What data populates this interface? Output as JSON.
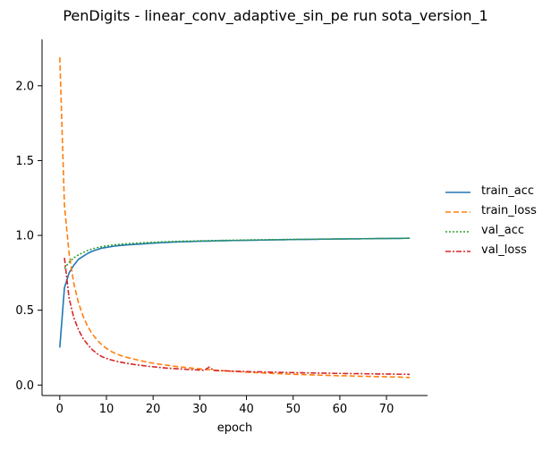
{
  "chart_data": {
    "type": "line",
    "title": "PenDigits - linear_conv_adaptive_sin_pe run sota_version_1",
    "xlabel": "epoch",
    "ylabel": "",
    "xlim": [
      -3.8,
      78.8
    ],
    "ylim": [
      -0.07,
      2.31
    ],
    "xticks": [
      0,
      10,
      20,
      30,
      40,
      50,
      60,
      70
    ],
    "yticks": [
      0.0,
      0.5,
      1.0,
      1.5,
      2.0
    ],
    "grid": false,
    "legend_position": "center-right",
    "x": [
      0,
      1,
      2,
      3,
      4,
      5,
      6,
      7,
      8,
      9,
      10,
      11,
      12,
      13,
      14,
      15,
      16,
      17,
      18,
      19,
      20,
      21,
      22,
      23,
      24,
      25,
      26,
      27,
      28,
      29,
      30,
      31,
      32,
      33,
      34,
      35,
      36,
      37,
      38,
      39,
      40,
      41,
      42,
      43,
      44,
      45,
      46,
      47,
      48,
      49,
      50,
      51,
      52,
      53,
      54,
      55,
      56,
      57,
      58,
      59,
      60,
      61,
      62,
      63,
      64,
      65,
      66,
      67,
      68,
      69,
      70,
      71,
      72,
      73,
      74,
      75
    ],
    "series": [
      {
        "name": "train_acc",
        "color": "#1f77b4",
        "dash": "solid",
        "values": [
          0.25,
          0.65,
          0.75,
          0.8,
          0.84,
          0.86,
          0.88,
          0.895,
          0.905,
          0.915,
          0.92,
          0.925,
          0.93,
          0.933,
          0.936,
          0.938,
          0.94,
          0.942,
          0.944,
          0.946,
          0.948,
          0.95,
          0.952,
          0.953,
          0.955,
          0.956,
          0.957,
          0.958,
          0.959,
          0.96,
          0.961,
          0.962,
          0.962,
          0.963,
          0.964,
          0.964,
          0.965,
          0.966,
          0.966,
          0.967,
          0.967,
          0.968,
          0.968,
          0.969,
          0.969,
          0.97,
          0.97,
          0.971,
          0.971,
          0.972,
          0.972,
          0.973,
          0.973,
          0.973,
          0.974,
          0.974,
          0.975,
          0.975,
          0.975,
          0.976,
          0.976,
          0.976,
          0.977,
          0.977,
          0.977,
          0.978,
          0.978,
          0.978,
          0.979,
          0.979,
          0.979,
          0.98,
          0.98,
          0.98,
          0.981,
          0.982
        ]
      },
      {
        "name": "train_loss",
        "color": "#ff7f0e",
        "dash": "dashed",
        "values": [
          2.19,
          1.2,
          0.88,
          0.68,
          0.55,
          0.46,
          0.39,
          0.34,
          0.3,
          0.27,
          0.245,
          0.225,
          0.21,
          0.198,
          0.188,
          0.18,
          0.172,
          0.165,
          0.158,
          0.152,
          0.146,
          0.141,
          0.136,
          0.132,
          0.128,
          0.124,
          0.12,
          0.117,
          0.114,
          0.111,
          0.108,
          0.105,
          0.103,
          0.1,
          0.098,
          0.096,
          0.094,
          0.092,
          0.09,
          0.088,
          0.086,
          0.085,
          0.083,
          0.082,
          0.08,
          0.079,
          0.077,
          0.076,
          0.075,
          0.073,
          0.072,
          0.071,
          0.07,
          0.069,
          0.068,
          0.067,
          0.066,
          0.065,
          0.064,
          0.063,
          0.062,
          0.062,
          0.061,
          0.06,
          0.059,
          0.058,
          0.058,
          0.057,
          0.056,
          0.056,
          0.055,
          0.054,
          0.054,
          0.053,
          0.052,
          0.05
        ]
      },
      {
        "name": "val_acc",
        "color": "#2ca02c",
        "dash": "dotted",
        "values": [
          null,
          0.78,
          0.82,
          0.85,
          0.87,
          0.885,
          0.9,
          0.91,
          0.918,
          0.925,
          0.93,
          0.934,
          0.938,
          0.941,
          0.943,
          0.945,
          0.947,
          0.949,
          0.951,
          0.952,
          0.954,
          0.955,
          0.957,
          0.958,
          0.959,
          0.96,
          0.961,
          0.962,
          0.962,
          0.963,
          0.964,
          0.964,
          0.965,
          0.966,
          0.966,
          0.967,
          0.967,
          0.968,
          0.968,
          0.969,
          0.969,
          0.97,
          0.97,
          0.971,
          0.971,
          0.972,
          0.972,
          0.972,
          0.973,
          0.973,
          0.974,
          0.974,
          0.974,
          0.975,
          0.975,
          0.975,
          0.976,
          0.976,
          0.976,
          0.977,
          0.977,
          0.977,
          0.978,
          0.978,
          0.978,
          0.978,
          0.979,
          0.979,
          0.979,
          0.98,
          0.98,
          0.98,
          0.98,
          0.981,
          0.981,
          0.981
        ]
      },
      {
        "name": "val_loss",
        "color": "#d62728",
        "dash": "dashdot",
        "values": [
          null,
          0.85,
          0.58,
          0.45,
          0.37,
          0.31,
          0.27,
          0.235,
          0.21,
          0.19,
          0.178,
          0.168,
          0.16,
          0.153,
          0.147,
          0.142,
          0.137,
          0.133,
          0.129,
          0.125,
          0.122,
          0.119,
          0.116,
          0.113,
          0.111,
          0.109,
          0.107,
          0.105,
          0.103,
          0.102,
          0.1,
          0.099,
          0.12,
          0.097,
          0.096,
          0.095,
          0.094,
          0.093,
          0.092,
          0.091,
          0.09,
          0.089,
          0.089,
          0.088,
          0.087,
          0.086,
          0.086,
          0.085,
          0.084,
          0.084,
          0.083,
          0.082,
          0.082,
          0.081,
          0.081,
          0.08,
          0.08,
          0.079,
          0.079,
          0.078,
          0.078,
          0.077,
          0.077,
          0.076,
          0.076,
          0.076,
          0.075,
          0.075,
          0.074,
          0.074,
          0.074,
          0.073,
          0.073,
          0.072,
          0.072,
          0.071
        ]
      }
    ]
  }
}
